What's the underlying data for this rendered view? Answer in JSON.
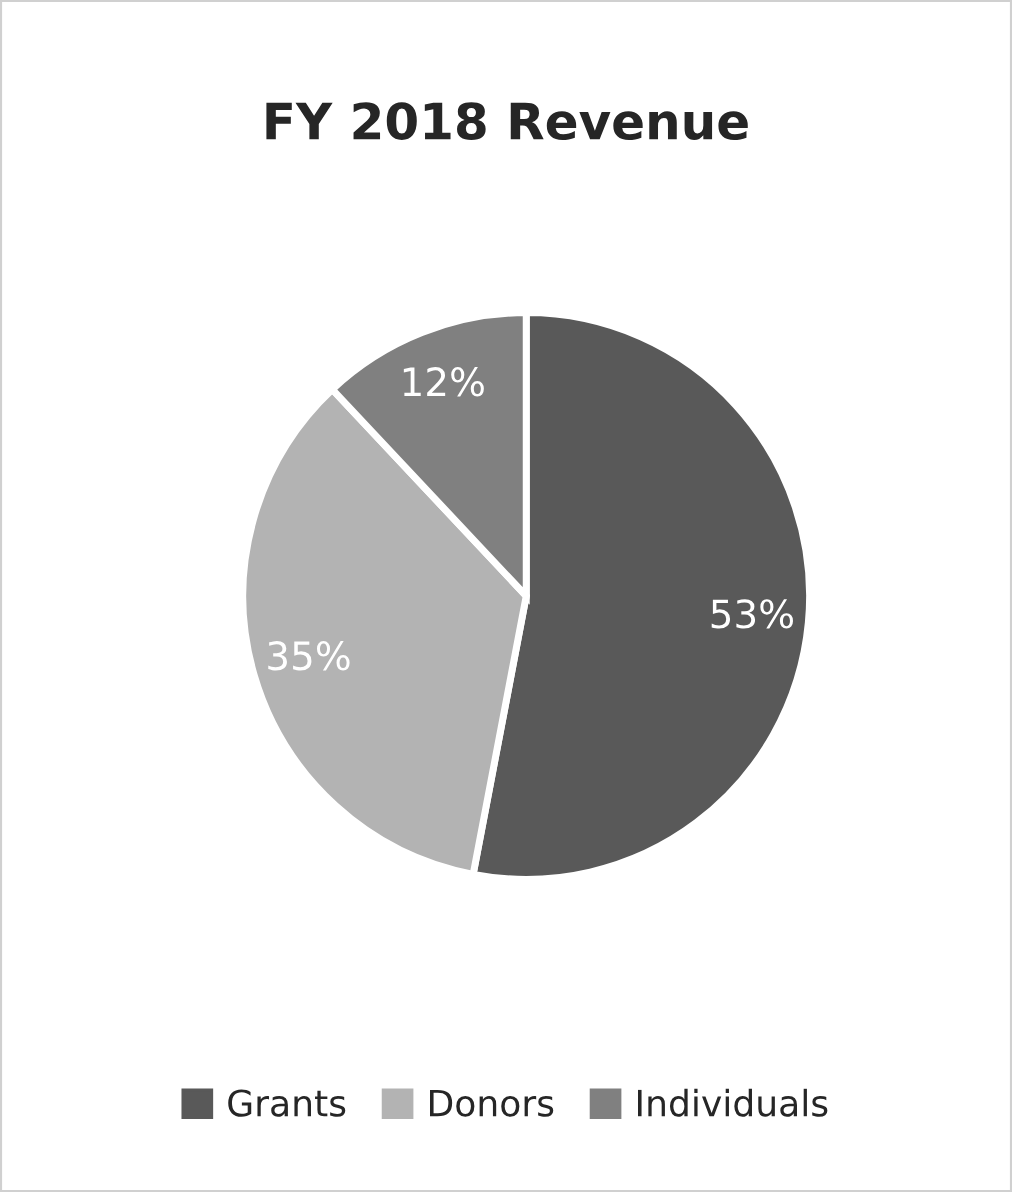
{
  "chart_data": {
    "type": "pie",
    "title": "FY 2018 Revenue",
    "categories": [
      "Grants",
      "Donors",
      "Individuals"
    ],
    "values": [
      53,
      35,
      12
    ],
    "colors": [
      "#595959",
      "#b3b3b3",
      "#808080"
    ],
    "value_labels": [
      "53%",
      "35%",
      "12%"
    ],
    "legend": "bottom"
  }
}
